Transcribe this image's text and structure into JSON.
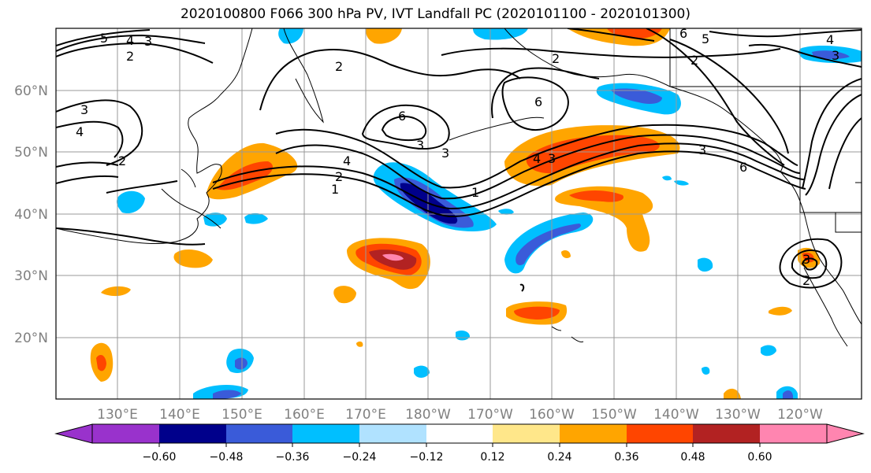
{
  "title": "2020100800 F066 300 hPa PV, IVT Landfall PC (2020101100 - 2020101300)",
  "map": {
    "lat_labels": [
      {
        "value": 60,
        "label": "60°N"
      },
      {
        "value": 50,
        "label": "50°N"
      },
      {
        "value": 40,
        "label": "40°N"
      },
      {
        "value": 30,
        "label": "30°N"
      },
      {
        "value": 20,
        "label": "20°N"
      }
    ],
    "lon_labels": [
      {
        "value": 130,
        "label": "130°E"
      },
      {
        "value": 140,
        "label": "140°E"
      },
      {
        "value": 150,
        "label": "150°E"
      },
      {
        "value": 160,
        "label": "160°E"
      },
      {
        "value": 170,
        "label": "170°E"
      },
      {
        "value": 180,
        "label": "180°W"
      },
      {
        "value": 190,
        "label": "170°W"
      },
      {
        "value": 200,
        "label": "160°W"
      },
      {
        "value": 210,
        "label": "150°W"
      },
      {
        "value": 220,
        "label": "140°W"
      },
      {
        "value": 230,
        "label": "130°W"
      },
      {
        "value": 240,
        "label": "120°W"
      }
    ],
    "extent": {
      "lon_min": 120,
      "lon_max": 250,
      "lat_min": 10,
      "lat_max": 70
    },
    "pv_contour_labels": [
      "5",
      "4",
      "3",
      "2",
      "2",
      "6",
      "3",
      "3",
      "4",
      "2",
      "1",
      "6",
      "4",
      "3",
      "5",
      "6",
      "2",
      "3",
      "4",
      "6",
      "3",
      "2",
      "3",
      "4",
      "2",
      "3",
      "2",
      "1"
    ]
  },
  "colorbar": {
    "ticks": [
      "−0.60",
      "−0.48",
      "−0.36",
      "−0.24",
      "−0.12",
      "0.12",
      "0.24",
      "0.36",
      "0.48",
      "0.60"
    ],
    "colors": [
      "#9932cc",
      "#00008b",
      "#3a5bd9",
      "#00bfff",
      "#b0e2ff",
      "#ffffff",
      "#ffe78a",
      "#ffa500",
      "#ff4500",
      "#b22222",
      "#ff85b0"
    ]
  }
}
